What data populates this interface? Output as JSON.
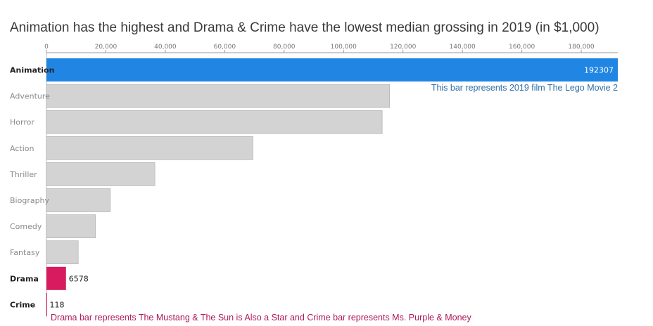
{
  "chart_data": {
    "type": "bar",
    "orientation": "horizontal",
    "title": "Animation has the highest and Drama & Crime have the lowest median grossing in 2019 (in $1,000)",
    "xlabel": "",
    "ylabel": "",
    "xlim": [
      0,
      192307
    ],
    "x_ticks": [
      0,
      20000,
      40000,
      60000,
      80000,
      100000,
      120000,
      140000,
      160000,
      180000
    ],
    "x_tick_labels": [
      "0",
      "20,000",
      "40,000",
      "60,000",
      "80,000",
      "100,000",
      "120,000",
      "140,000",
      "160,000",
      "180,000"
    ],
    "axis_position": "top",
    "grid": false,
    "categories": [
      "Animation",
      "Adventure",
      "Horror",
      "Action",
      "Thriller",
      "Biography",
      "Comedy",
      "Fantasy",
      "Drama",
      "Crime"
    ],
    "values": [
      192307,
      115500,
      113000,
      69500,
      36500,
      21500,
      16500,
      10700,
      6578,
      118
    ],
    "value_labels": [
      "192307",
      "",
      "",
      "",
      "",
      "",
      "",
      "",
      "6578",
      "118"
    ],
    "highlighted": [
      "Animation",
      "Drama",
      "Crime"
    ],
    "colors": {
      "Animation": "#2186e3",
      "Drama": "#d81b5f",
      "Crime": "#d81b5f",
      "default": "#d3d3d3"
    },
    "annotations": [
      {
        "text": "This bar represents 2019 film The Lego Movie 2",
        "color": "#2f6fa8"
      },
      {
        "text": "Drama bar represents The Mustang & The Sun is Also a Star and Crime bar represents Ms. Purple & Money",
        "color": "#b0185a"
      }
    ]
  }
}
